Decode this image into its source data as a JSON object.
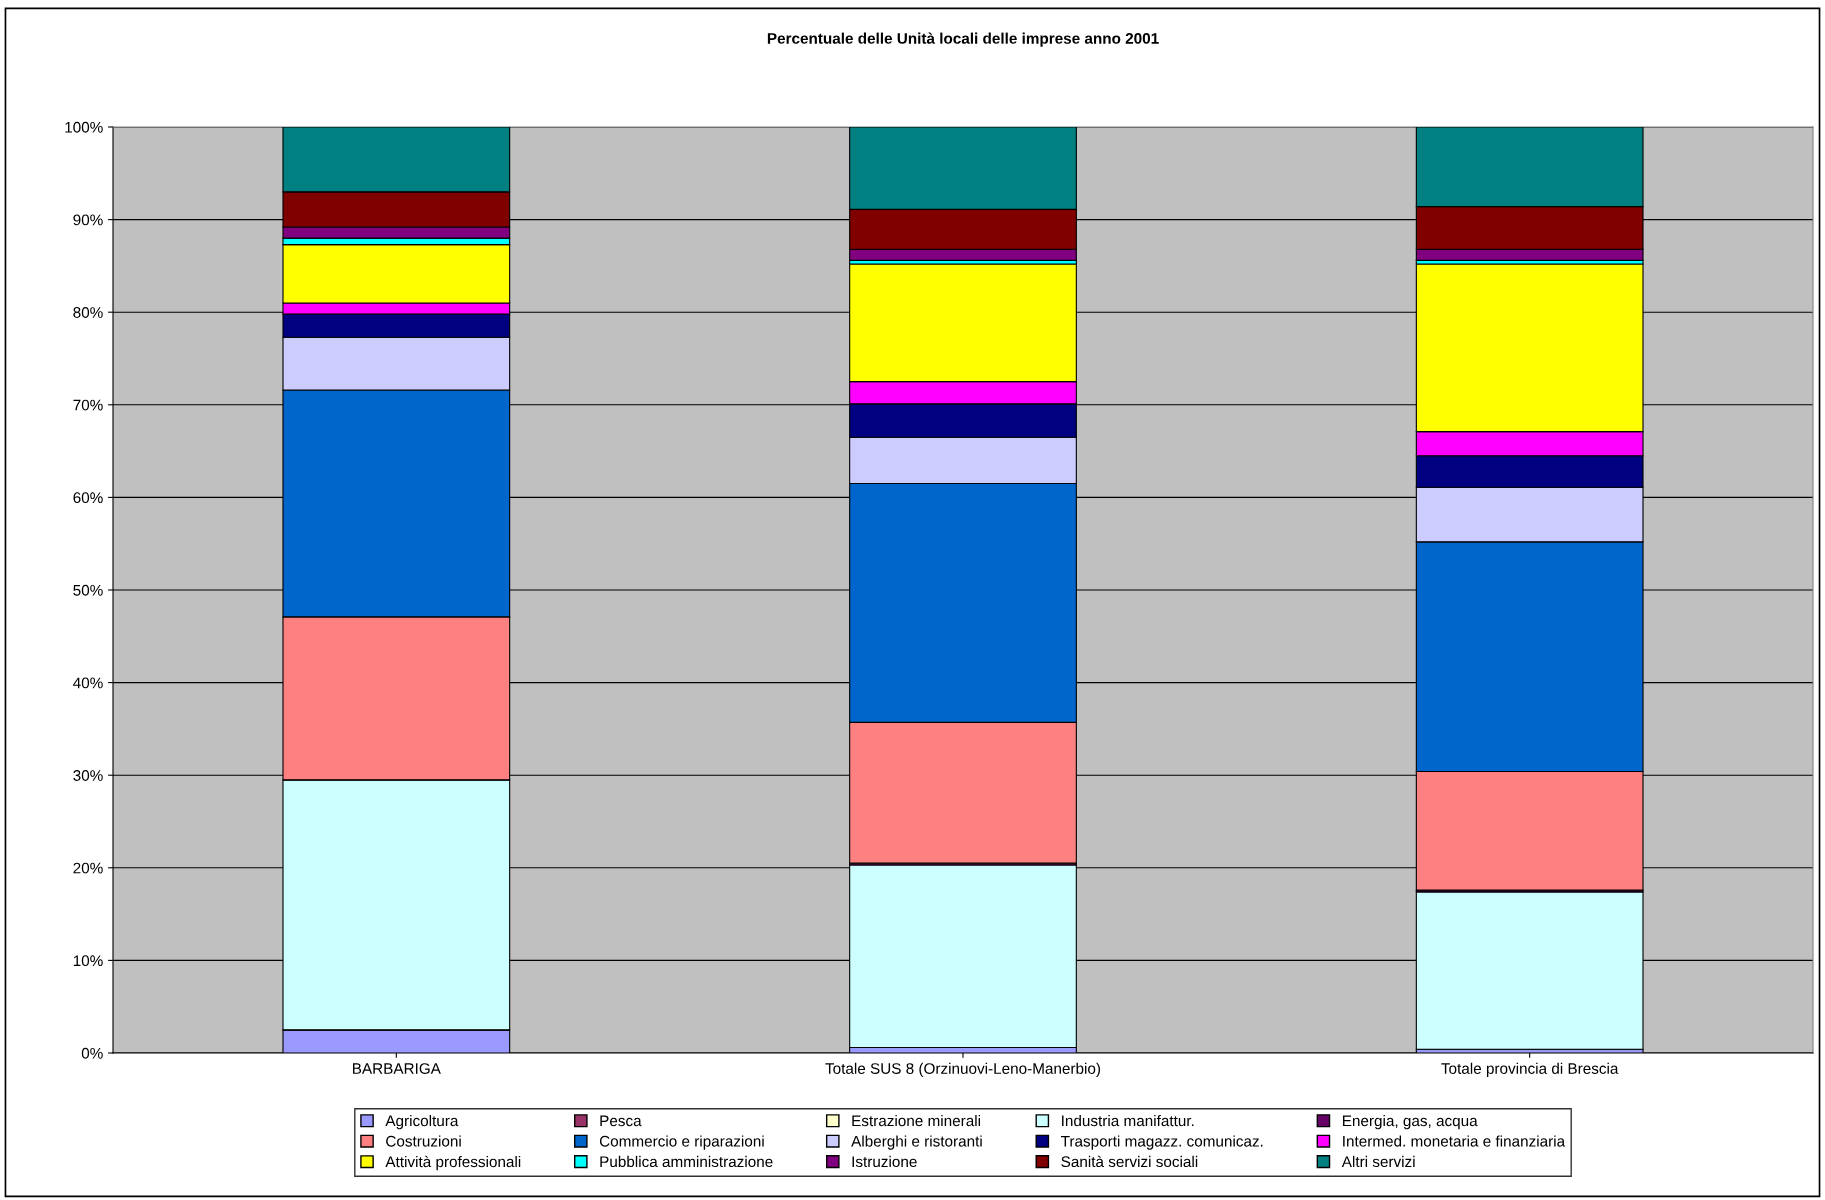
{
  "chart_data": {
    "type": "bar",
    "stacked": true,
    "title": "Percentuale delle Unità locali delle imprese anno 2001",
    "categories": [
      "BARBARIGA",
      "Totale SUS 8 (Orzinuovi-Leno-Manerbio)",
      "Totale provincia di Brescia"
    ],
    "series": [
      {
        "name": "Agricoltura",
        "color": "#9999ff",
        "values": [
          2.5,
          0.6,
          0.4
        ]
      },
      {
        "name": "Pesca",
        "color": "#993366",
        "values": [
          0,
          0,
          0
        ]
      },
      {
        "name": "Estrazione minerali",
        "color": "#ffffcc",
        "values": [
          0,
          0,
          0
        ]
      },
      {
        "name": "Industria manifattur.",
        "color": "#ccffff",
        "values": [
          27.0,
          19.7,
          17.0
        ]
      },
      {
        "name": "Energia, gas, acqua",
        "color": "#660066",
        "values": [
          0,
          0.2,
          0.2
        ]
      },
      {
        "name": "Costruzioni",
        "color": "#ff8080",
        "values": [
          17.6,
          15.2,
          12.8
        ]
      },
      {
        "name": "Commercio e riparazioni",
        "color": "#0066cc",
        "values": [
          24.5,
          25.8,
          24.8
        ]
      },
      {
        "name": "Alberghi e ristoranti",
        "color": "#ccccff",
        "values": [
          5.7,
          5.0,
          5.9
        ]
      },
      {
        "name": "Trasporti magazz. comunicaz.",
        "color": "#000080",
        "values": [
          2.5,
          3.6,
          3.4
        ]
      },
      {
        "name": "Intermed. monetaria e finanziaria",
        "color": "#ff00ff",
        "values": [
          1.2,
          2.4,
          2.6
        ]
      },
      {
        "name": "Attività professionali",
        "color": "#ffff00",
        "values": [
          6.3,
          12.7,
          18.1
        ]
      },
      {
        "name": "Pubblica amministrazione",
        "color": "#00ffff",
        "values": [
          0.7,
          0.4,
          0.4
        ]
      },
      {
        "name": "Istruzione",
        "color": "#800080",
        "values": [
          1.2,
          1.2,
          1.2
        ]
      },
      {
        "name": "Sanità servizi sociali",
        "color": "#800000",
        "values": [
          3.8,
          4.3,
          4.6
        ]
      },
      {
        "name": "Altri servizi",
        "color": "#008080",
        "values": [
          7.0,
          8.9,
          8.6
        ]
      }
    ],
    "ylim": [
      0,
      100
    ],
    "yticks": [
      {
        "value": 0,
        "label": "0%"
      },
      {
        "value": 10,
        "label": "10%"
      },
      {
        "value": 20,
        "label": "20%"
      },
      {
        "value": 30,
        "label": "30%"
      },
      {
        "value": 40,
        "label": "40%"
      },
      {
        "value": 50,
        "label": "50%"
      },
      {
        "value": 60,
        "label": "60%"
      },
      {
        "value": 70,
        "label": "70%"
      },
      {
        "value": 80,
        "label": "80%"
      },
      {
        "value": 90,
        "label": "90%"
      },
      {
        "value": 100,
        "label": "100%"
      }
    ],
    "grid": "y",
    "legend": "bottom"
  }
}
